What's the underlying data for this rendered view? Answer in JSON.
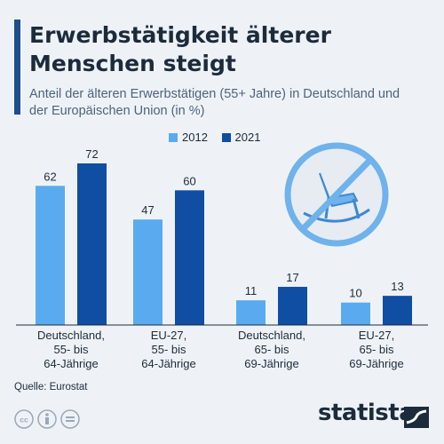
{
  "header": {
    "title": "Erwerbstätigkeit älterer Menschen steigt",
    "subtitle": "Anteil der älteren Erwerbstätigen (55+ Jahre) in Deutschland und der Europäischen Union (in %)"
  },
  "chart_data": {
    "type": "bar",
    "categories": [
      [
        "Deutschland,",
        "55- bis",
        "64-Jährige"
      ],
      [
        "EU-27,",
        "55- bis",
        "64-Jährige"
      ],
      [
        "Deutschland,",
        "65- bis",
        "69-Jährige"
      ],
      [
        "EU-27,",
        "65- bis",
        "69-Jährige"
      ]
    ],
    "series": [
      {
        "name": "2012",
        "values": [
          62,
          47,
          11,
          10
        ],
        "color": "#5aaaf0"
      },
      {
        "name": "2021",
        "values": [
          72,
          60,
          17,
          13
        ],
        "color": "#0f4ea2"
      }
    ],
    "ylim": [
      0,
      72
    ],
    "grid": false,
    "legend_position": "top"
  },
  "footer": {
    "source": "Quelle: Eurostat",
    "brand": "statista"
  },
  "colors": {
    "accent": "#1f4e8c",
    "text": "#1c2b3c",
    "icon": "#6fb2ec"
  },
  "icons": {
    "illustration": "no-rocking-chair-icon",
    "license": [
      "cc-icon",
      "attribution-icon",
      "no-derivatives-icon"
    ],
    "brand_mark": "statista-logo-icon"
  }
}
